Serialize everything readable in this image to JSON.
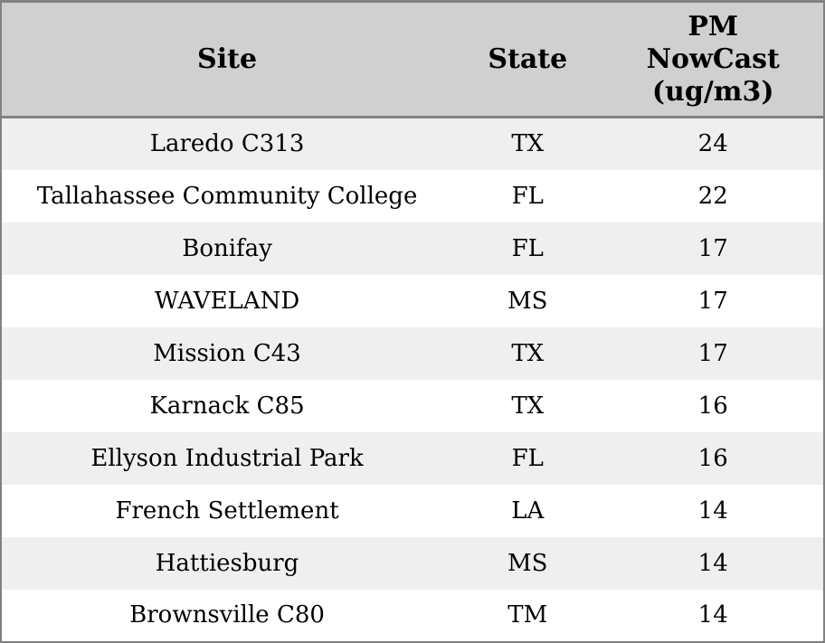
{
  "chart_data": {
    "type": "table",
    "columns": [
      "Site",
      "State",
      "PM NowCast (ug/m3)"
    ],
    "rows": [
      [
        "Laredo C313",
        "TX",
        24
      ],
      [
        "Tallahassee Community College",
        "FL",
        22
      ],
      [
        "Bonifay",
        "FL",
        17
      ],
      [
        "WAVELAND",
        "MS",
        17
      ],
      [
        "Mission C43",
        "TX",
        17
      ],
      [
        "Karnack C85",
        "TX",
        16
      ],
      [
        "Ellyson Industrial Park",
        "FL",
        16
      ],
      [
        "French Settlement",
        "LA",
        14
      ],
      [
        "Hattiesburg",
        "MS",
        14
      ],
      [
        "Brownsville C80",
        "TM",
        14
      ]
    ]
  },
  "table": {
    "header": {
      "site": "Site",
      "state": "State",
      "pm": "PM\nNowCast\n(ug/m3)"
    },
    "rows": [
      {
        "site": "Laredo C313",
        "state": "TX",
        "pm": "24"
      },
      {
        "site": "Tallahassee Community College",
        "state": "FL",
        "pm": "22"
      },
      {
        "site": "Bonifay",
        "state": "FL",
        "pm": "17"
      },
      {
        "site": "WAVELAND",
        "state": "MS",
        "pm": "17"
      },
      {
        "site": "Mission C43",
        "state": "TX",
        "pm": "17"
      },
      {
        "site": "Karnack C85",
        "state": "TX",
        "pm": "16"
      },
      {
        "site": "Ellyson Industrial Park",
        "state": "FL",
        "pm": "16"
      },
      {
        "site": "French Settlement",
        "state": "LA",
        "pm": "14"
      },
      {
        "site": "Hattiesburg",
        "state": "MS",
        "pm": "14"
      },
      {
        "site": "Brownsville C80",
        "state": "TM",
        "pm": "14"
      }
    ]
  },
  "colors": {
    "header_bg": "#d0d0d0",
    "row_bg": "#ffffff",
    "row_alt_bg": "#efefef",
    "border": "#818181",
    "text": "#000000"
  }
}
